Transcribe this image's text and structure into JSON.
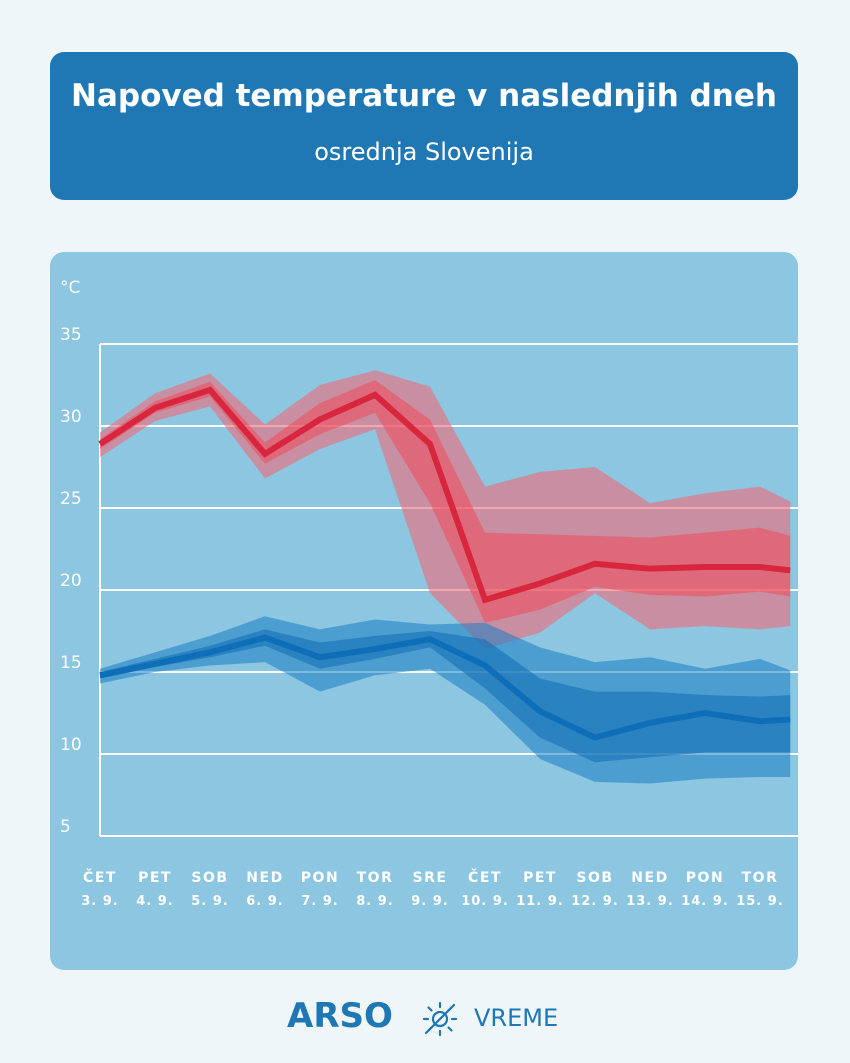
{
  "header": {
    "title": "Napoved temperature v naslednjih dneh",
    "subtitle": "osrednja Slovenija"
  },
  "chart_data": {
    "type": "area",
    "yunit": "°C",
    "ylim": [
      5,
      35
    ],
    "yticks": [
      5,
      10,
      15,
      20,
      25,
      30,
      35
    ],
    "grid": true,
    "categories": [
      {
        "day": "ČET",
        "date": "3. 9."
      },
      {
        "day": "PET",
        "date": "4. 9."
      },
      {
        "day": "SOB",
        "date": "5. 9."
      },
      {
        "day": "NED",
        "date": "6. 9."
      },
      {
        "day": "PON",
        "date": "7. 9."
      },
      {
        "day": "TOR",
        "date": "8. 9."
      },
      {
        "day": "SRE",
        "date": "9. 9."
      },
      {
        "day": "ČET",
        "date": "10. 9."
      },
      {
        "day": "PET",
        "date": "11. 9."
      },
      {
        "day": "SOB",
        "date": "12. 9."
      },
      {
        "day": "NED",
        "date": "13. 9."
      },
      {
        "day": "PON",
        "date": "14. 9."
      },
      {
        "day": "TOR",
        "date": "15. 9."
      }
    ],
    "x_values": [
      0,
      1,
      2,
      3,
      4,
      5,
      6,
      7,
      8,
      9,
      10,
      11,
      12,
      12.55
    ],
    "series": [
      {
        "role": "max",
        "color": "#d7263d",
        "median": [
          28.9,
          31.1,
          32.2,
          28.3,
          30.4,
          31.9,
          28.9,
          19.4,
          20.4,
          21.6,
          21.3,
          21.4,
          21.4,
          21.2
        ],
        "inner_low": [
          28.6,
          30.8,
          31.8,
          27.7,
          29.5,
          30.8,
          25.3,
          18.0,
          18.8,
          20.2,
          19.7,
          19.6,
          19.9,
          19.6
        ],
        "inner_high": [
          29.2,
          31.5,
          32.7,
          29.0,
          31.4,
          32.8,
          30.4,
          23.5,
          23.4,
          23.3,
          23.2,
          23.5,
          23.8,
          23.3
        ],
        "outer_low": [
          28.1,
          30.3,
          31.2,
          26.8,
          28.6,
          29.8,
          19.8,
          16.4,
          17.4,
          19.8,
          17.6,
          17.8,
          17.6,
          17.8
        ],
        "outer_high": [
          29.6,
          32.0,
          33.2,
          30.1,
          32.5,
          33.4,
          32.4,
          26.3,
          27.2,
          27.5,
          25.3,
          25.9,
          26.3,
          25.4
        ]
      },
      {
        "role": "min",
        "color": "#0e6fb8",
        "median": [
          14.8,
          15.5,
          16.2,
          17.1,
          15.9,
          16.4,
          17.0,
          15.4,
          12.6,
          11.0,
          11.9,
          12.5,
          12.0,
          12.1
        ],
        "inner_low": [
          14.6,
          15.3,
          15.9,
          16.6,
          15.2,
          15.8,
          16.5,
          14.0,
          11.0,
          9.5,
          9.8,
          10.1,
          10.1,
          10.1
        ],
        "inner_high": [
          15.0,
          15.8,
          16.6,
          17.6,
          16.8,
          17.2,
          17.5,
          17.0,
          14.6,
          13.8,
          13.8,
          13.6,
          13.5,
          13.6
        ],
        "outer_low": [
          14.3,
          15.0,
          15.4,
          15.6,
          13.8,
          14.8,
          15.2,
          13.0,
          9.7,
          8.3,
          8.2,
          8.5,
          8.6,
          8.6
        ],
        "outer_high": [
          15.2,
          16.2,
          17.2,
          18.4,
          17.6,
          18.2,
          17.9,
          18.0,
          16.5,
          15.6,
          15.9,
          15.2,
          15.8,
          15.1
        ]
      }
    ]
  },
  "footer": {
    "brand": "ARSO",
    "label": "VREME",
    "icon": "sun-icon"
  }
}
